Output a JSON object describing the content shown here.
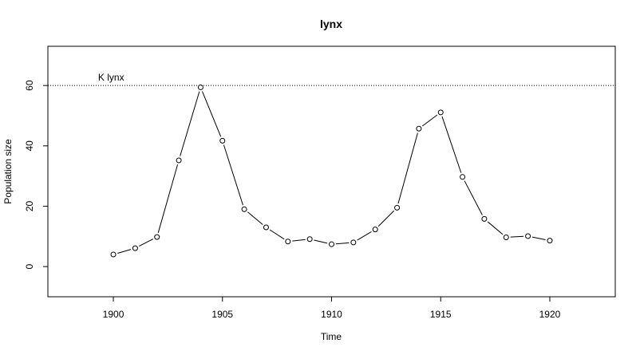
{
  "chart_data": {
    "type": "line",
    "title": "lynx",
    "xlabel": "Time",
    "ylabel": "Population size",
    "x": [
      1900,
      1901,
      1902,
      1903,
      1904,
      1905,
      1906,
      1907,
      1908,
      1909,
      1910,
      1911,
      1912,
      1913,
      1914,
      1915,
      1916,
      1917,
      1918,
      1919,
      1920
    ],
    "series": [
      {
        "values": [
          4.0,
          6.1,
          9.8,
          35.2,
          59.4,
          41.7,
          19.0,
          13.0,
          8.3,
          9.1,
          7.4,
          8.0,
          12.3,
          19.5,
          45.7,
          51.1,
          29.7,
          15.8,
          9.7,
          10.1,
          8.6
        ]
      }
    ],
    "reference_line": {
      "label": "K lynx",
      "y": 60,
      "style": "dotted"
    },
    "xlim": [
      1897,
      1923
    ],
    "ylim": [
      -10,
      73
    ],
    "xticks": [
      "1900",
      "1905",
      "1910",
      "1915",
      "1920"
    ],
    "yticks": [
      "0",
      "20",
      "40",
      "60"
    ],
    "grid": false,
    "markers": "open-circle"
  }
}
